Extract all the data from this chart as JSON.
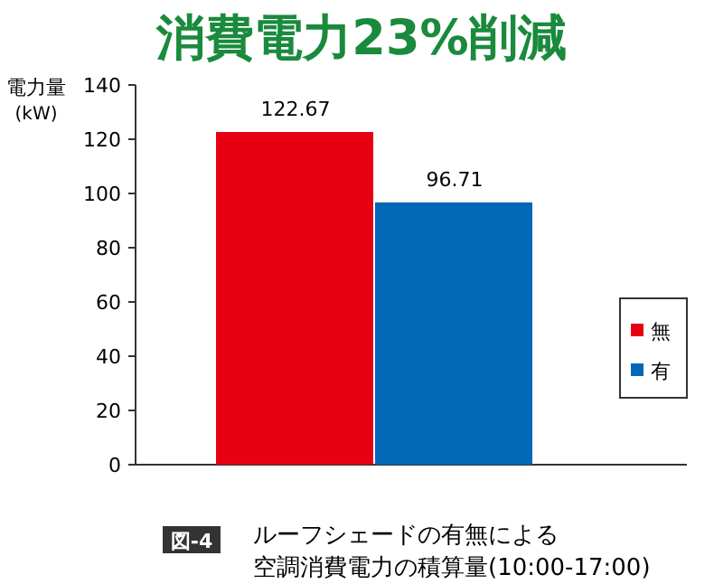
{
  "chart_data": {
    "type": "bar",
    "title": "消費電力23%削減",
    "ylabel": "電力量 (kW)",
    "categories": [
      null
    ],
    "series": [
      {
        "name": "無",
        "color": "#e60012",
        "values": [
          122.67
        ]
      },
      {
        "name": "有",
        "color": "#0068b7",
        "values": [
          96.71
        ]
      }
    ],
    "ylim": [
      0,
      140
    ],
    "yticks": [
      0,
      20,
      40,
      60,
      80,
      100,
      120,
      140
    ],
    "data_labels": true,
    "legend": "right",
    "grid": false,
    "annotations": [
      "図-4",
      "ルーフシェードの有無による",
      "空調消費電力の積算量(10:00-17:00)"
    ]
  }
}
